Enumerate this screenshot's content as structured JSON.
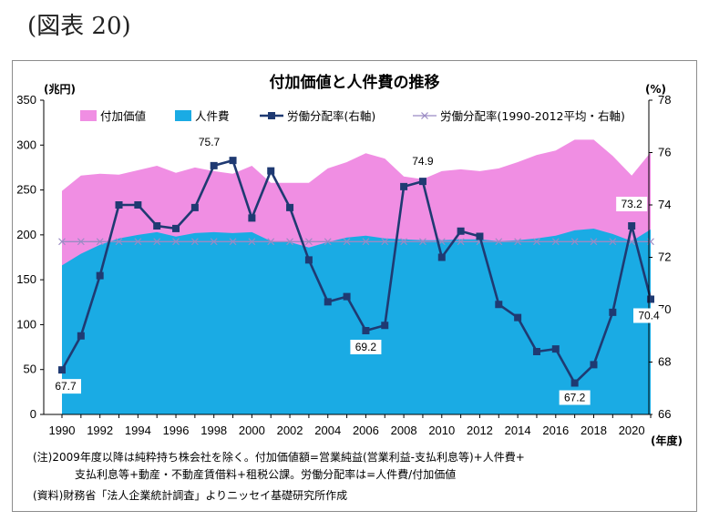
{
  "figure_label": "(図表 20)",
  "chart_data": {
    "type": "area",
    "title": "付加価値と人件費の推移",
    "left_unit": "(兆円)",
    "right_unit": "(%)",
    "x_unit": "(年度)",
    "x": [
      1990,
      1991,
      1992,
      1993,
      1994,
      1995,
      1996,
      1997,
      1998,
      1999,
      2000,
      2001,
      2002,
      2003,
      2004,
      2005,
      2006,
      2007,
      2008,
      2009,
      2010,
      2011,
      2012,
      2013,
      2014,
      2015,
      2016,
      2017,
      2018,
      2019,
      2020,
      2021
    ],
    "x_ticks": [
      "1990",
      "1992",
      "1994",
      "1996",
      "1998",
      "2000",
      "2002",
      "2004",
      "2006",
      "2008",
      "2010",
      "2012",
      "2014",
      "2016",
      "2018",
      "2020"
    ],
    "y_left_ticks": [
      "0",
      "50",
      "100",
      "150",
      "200",
      "250",
      "300",
      "350"
    ],
    "y_right_ticks": [
      "66",
      "68",
      "70",
      "72",
      "74",
      "76",
      "78"
    ],
    "ylim_left": [
      0,
      350
    ],
    "ylim_right": [
      66,
      78
    ],
    "series": [
      {
        "name": "付加価値",
        "axis": "left",
        "color": "#f08ee3",
        "values": [
          249,
          266,
          268,
          267,
          272,
          277,
          269,
          275,
          271,
          268,
          277,
          258,
          258,
          258,
          274,
          281,
          291,
          285,
          265,
          262,
          271,
          273,
          271,
          274,
          281,
          289,
          294,
          306,
          306,
          288,
          266,
          292
        ]
      },
      {
        "name": "人件費",
        "axis": "left",
        "color": "#1aabe4",
        "values": [
          166,
          179,
          189,
          196,
          200,
          203,
          198,
          202,
          203,
          202,
          203,
          193,
          192,
          186,
          192,
          197,
          199,
          196,
          195,
          194,
          194,
          195,
          195,
          193,
          194,
          196,
          199,
          205,
          207,
          201,
          193,
          206
        ]
      },
      {
        "name": "労働分配率(右軸)",
        "axis": "right",
        "color": "#1f3a72",
        "values": [
          67.7,
          69.0,
          71.3,
          74.0,
          74.0,
          73.2,
          73.1,
          73.9,
          75.5,
          75.7,
          73.5,
          75.3,
          73.9,
          71.9,
          70.3,
          70.5,
          69.2,
          69.4,
          74.7,
          74.9,
          72.0,
          73.0,
          72.8,
          70.2,
          69.7,
          68.4,
          68.5,
          67.2,
          67.9,
          69.9,
          73.2,
          70.4
        ]
      },
      {
        "name": "労働分配率(1990-2012平均・右軸)",
        "axis": "right",
        "color": "#9b8bc4",
        "values": [
          72.6,
          72.6,
          72.6,
          72.6,
          72.6,
          72.6,
          72.6,
          72.6,
          72.6,
          72.6,
          72.6,
          72.6,
          72.6,
          72.6,
          72.6,
          72.6,
          72.6,
          72.6,
          72.6,
          72.6,
          72.6,
          72.6,
          72.6,
          72.6,
          72.6,
          72.6,
          72.6,
          72.6,
          72.6,
          72.6,
          72.6,
          72.6
        ]
      }
    ],
    "data_labels": [
      {
        "year": 1990,
        "text": "67.7"
      },
      {
        "year": 1999,
        "text": "75.7"
      },
      {
        "year": 2006,
        "text": "69.2"
      },
      {
        "year": 2009,
        "text": "74.9"
      },
      {
        "year": 2017,
        "text": "67.2"
      },
      {
        "year": 2020,
        "text": "73.2"
      },
      {
        "year": 2021,
        "text": "70.4"
      }
    ],
    "legend_placement": "top",
    "grid": false
  },
  "notes": {
    "line1": "(注)2009年度以降は純粋持ち株会社を除く。付加価値額=営業純益(営業利益-支払利息等)+人件費+",
    "line2": "支払利息等+動産・不動産賃借料+租税公課。労働分配率は=人件費/付加価値",
    "line3": "(資料)財務省「法人企業統計調査」よりニッセイ基礎研究所作成"
  }
}
